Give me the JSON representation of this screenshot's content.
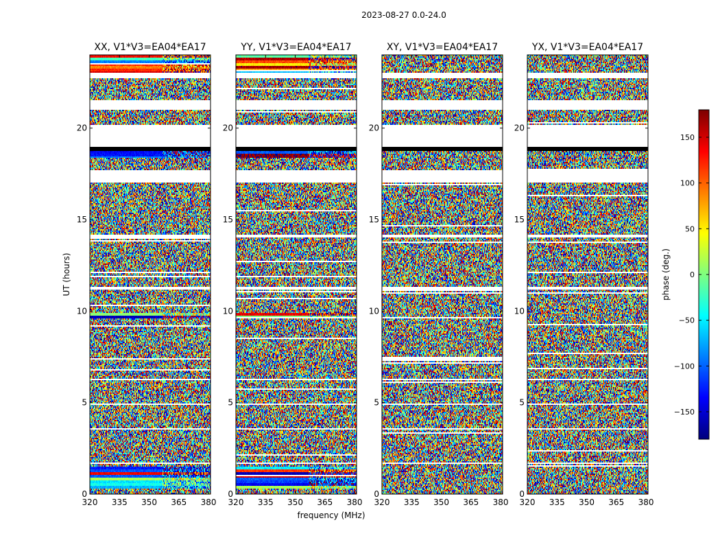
{
  "chart_data": {
    "type": "heatmap",
    "suptitle": "2023-08-27 0.0-24.0",
    "xlabel": "frequency (MHz)",
    "ylabel": "UT (hours)",
    "xlim": [
      320,
      381
    ],
    "ylim": [
      0,
      24
    ],
    "x_ticks": [
      320,
      335,
      350,
      365,
      380
    ],
    "x_tick_labels": [
      "320",
      "335",
      "350",
      "365",
      "380"
    ],
    "y_ticks": [
      0,
      5,
      10,
      15,
      20
    ],
    "y_tick_labels": [
      "0",
      "5",
      "10",
      "15",
      "20"
    ],
    "colorbar": {
      "label": "phase (deg.)",
      "colormap": "jet",
      "range": [
        -180,
        180
      ],
      "ticks": [
        -150,
        -100,
        -50,
        0,
        50,
        100,
        150
      ],
      "tick_labels": [
        "−150",
        "−100",
        "−50",
        "0",
        "50",
        "100",
        "150"
      ]
    },
    "panels": [
      {
        "title": "XX, V1*V3=EA04*EA17",
        "polarization": "XX"
      },
      {
        "title": "YY, V1*V3=EA04*EA17",
        "polarization": "YY"
      },
      {
        "title": "XY, V1*V3=EA04*EA17",
        "polarization": "XY"
      },
      {
        "title": "YX, V1*V3=EA04*EA17",
        "polarization": "YX"
      }
    ],
    "flagged_ut_ranges": [
      [
        19.0,
        20.2
      ],
      [
        17.0,
        17.7
      ],
      [
        21.0,
        21.5
      ],
      [
        22.7,
        23.0
      ],
      [
        14.0,
        14.2
      ],
      [
        11.2,
        11.3
      ],
      [
        6.2,
        6.3
      ],
      [
        4.85,
        4.95
      ],
      [
        3.5,
        3.6
      ],
      [
        1.65,
        1.75
      ]
    ],
    "unflagged_solid_ut_ranges": [
      [
        18.75,
        19.0
      ]
    ],
    "coherent_band_ut_ranges": [
      [
        23.0,
        24.0
      ],
      [
        18.4,
        18.75
      ],
      [
        9.6,
        9.9
      ],
      [
        0.3,
        1.5
      ]
    ]
  },
  "colors": {
    "background": "#ffffff",
    "axis": "#000000",
    "flagged": "#ffffff"
  }
}
